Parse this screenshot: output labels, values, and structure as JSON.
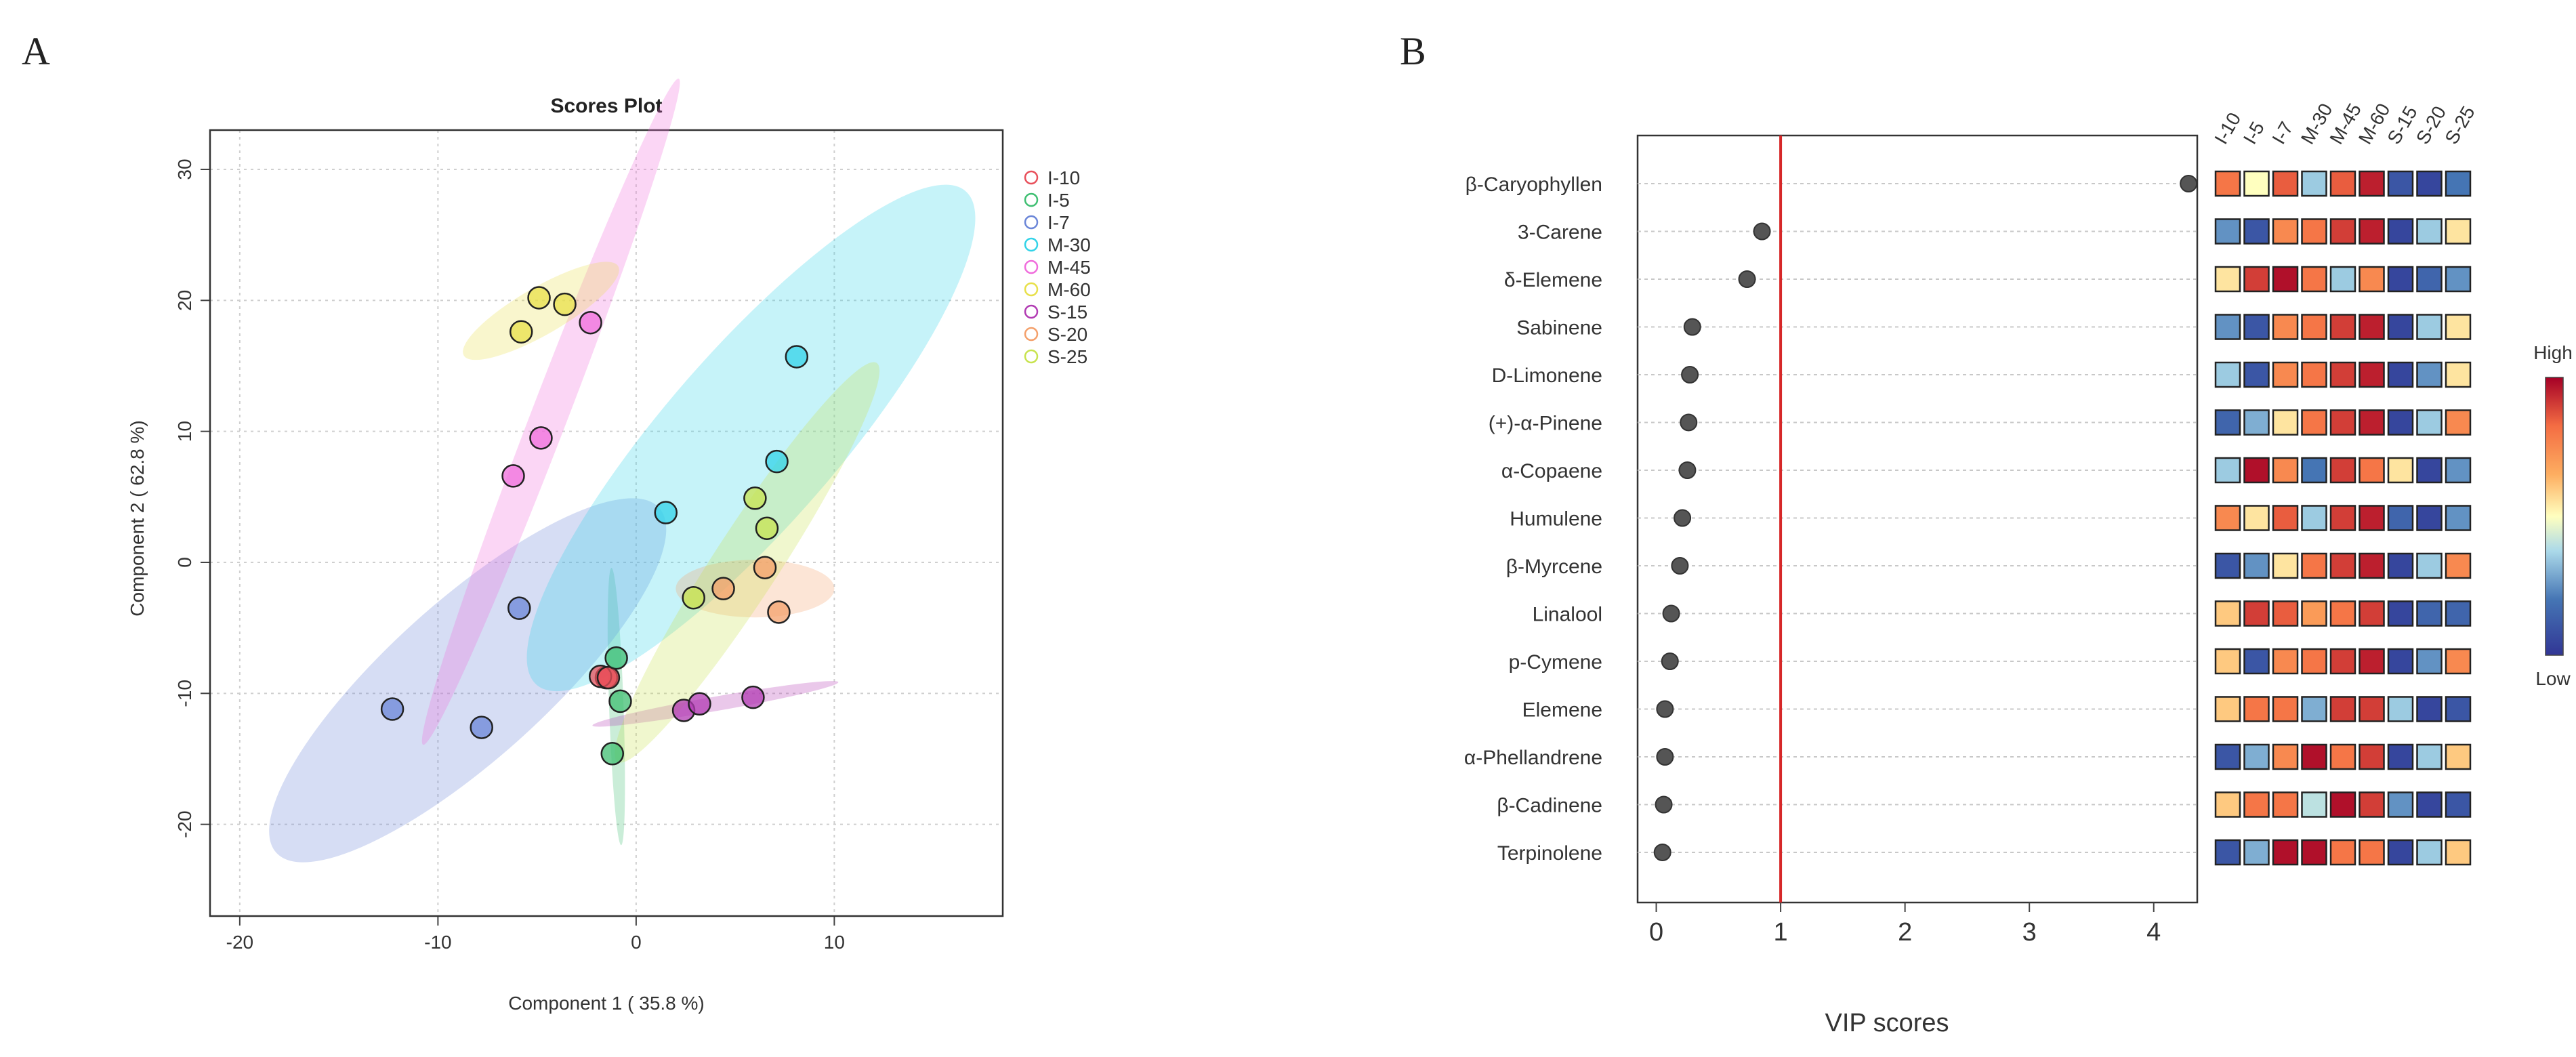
{
  "panel_labels": {
    "a": "A",
    "b": "B"
  },
  "chart_data": [
    {
      "type": "scatter",
      "title": "Scores Plot",
      "xlabel": "Component 1 ( 35.8 %)",
      "ylabel": "Component 2 ( 62.8 %)",
      "xlim": [
        -21.5,
        18.5
      ],
      "ylim": [
        -27,
        33
      ],
      "xticks": [
        "-20",
        "-10",
        "0",
        "10"
      ],
      "xtick_values": [
        -20,
        -10,
        0,
        10
      ],
      "yticks": [
        "-20",
        "-10",
        "0",
        "10",
        "20",
        "30"
      ],
      "ytick_values": [
        -20,
        -10,
        0,
        10,
        20,
        30
      ],
      "grid": true,
      "legend_position": "top-right",
      "series": [
        {
          "name": "I-10",
          "color": "#e8505b",
          "points": [
            [
              -1.5,
              -8.8
            ],
            [
              -1.8,
              -8.7
            ],
            [
              -1.4,
              -8.8
            ]
          ],
          "ellipse": null
        },
        {
          "name": "I-5",
          "color": "#3fbf72",
          "points": [
            [
              -1.0,
              -7.3
            ],
            [
              -0.8,
              -10.6
            ],
            [
              -1.2,
              -14.6
            ]
          ],
          "ellipse": {
            "cx": -1.0,
            "cy": -11.0,
            "rx": 7.0,
            "ry": 0.55,
            "angle": -88
          }
        },
        {
          "name": "I-7",
          "color": "#6b86d8",
          "points": [
            [
              -5.9,
              -3.5
            ],
            [
              -12.3,
              -11.2
            ],
            [
              -7.8,
              -12.6
            ]
          ],
          "ellipse": {
            "cx": -8.5,
            "cy": -9.0,
            "rx": 13.0,
            "ry": 6.0,
            "angle": 42
          }
        },
        {
          "name": "M-30",
          "color": "#33d3e8",
          "points": [
            [
              8.1,
              15.7
            ],
            [
              1.5,
              3.8
            ],
            [
              7.1,
              7.7
            ]
          ],
          "ellipse": {
            "cx": 5.8,
            "cy": 9.5,
            "rx": 16.5,
            "ry": 6.6,
            "angle": 49
          }
        },
        {
          "name": "M-45",
          "color": "#f06ddc",
          "points": [
            [
              -6.2,
              6.6
            ],
            [
              -4.8,
              9.5
            ],
            [
              -2.3,
              18.3
            ]
          ],
          "ellipse": {
            "cx": -4.3,
            "cy": 11.5,
            "rx": 18.0,
            "ry": 1.4,
            "angle": 69
          }
        },
        {
          "name": "M-60",
          "color": "#e8e04a",
          "points": [
            [
              -5.8,
              17.6
            ],
            [
              -4.9,
              20.2
            ],
            [
              -3.6,
              19.7
            ]
          ],
          "ellipse": {
            "cx": -4.8,
            "cy": 19.2,
            "rx": 4.5,
            "ry": 1.8,
            "angle": 30
          }
        },
        {
          "name": "S-15",
          "color": "#b23bb3",
          "points": [
            [
              2.4,
              -11.3
            ],
            [
              3.2,
              -10.8
            ],
            [
              5.9,
              -10.3
            ]
          ],
          "ellipse": {
            "cx": 4.0,
            "cy": -10.8,
            "rx": 6.3,
            "ry": 0.55,
            "angle": 10
          }
        },
        {
          "name": "S-20",
          "color": "#f4a06b",
          "points": [
            [
              4.4,
              -2.0
            ],
            [
              6.5,
              -0.4
            ],
            [
              7.2,
              -3.8
            ]
          ],
          "ellipse": {
            "cx": 6.0,
            "cy": -2.0,
            "rx": 4.0,
            "ry": 2.2,
            "angle": 0
          }
        },
        {
          "name": "S-25",
          "color": "#c8e34f",
          "points": [
            [
              6.0,
              4.9
            ],
            [
              6.6,
              2.6
            ],
            [
              2.9,
              -2.7
            ]
          ],
          "ellipse": {
            "cx": 5.6,
            "cy": 0.0,
            "rx": 12.0,
            "ry": 2.5,
            "angle": 57
          }
        }
      ]
    },
    {
      "type": "scatter",
      "subtype": "vip-dot-plot",
      "xlabel": "VIP scores",
      "xlim": [
        -0.15,
        4.35
      ],
      "xticks": [
        "0",
        "1",
        "2",
        "3",
        "4"
      ],
      "xtick_values": [
        0,
        1,
        2,
        3,
        4
      ],
      "threshold": 1,
      "threshold_color": "#d62728",
      "grid": true,
      "categories": [
        "β-Caryophyllen",
        "3-Carene",
        "δ-Elemene",
        "Sabinene",
        "D-Limonene",
        "(+)-α-Pinene",
        "α-Copaene",
        "Humulene",
        "β-Myrcene",
        "Linalool",
        "p-Cymene",
        "Elemene",
        "α-Phellandrene",
        "β-Cadinene",
        "Terpinolene"
      ],
      "values": [
        4.28,
        0.85,
        0.73,
        0.29,
        0.27,
        0.26,
        0.25,
        0.21,
        0.19,
        0.12,
        0.11,
        0.07,
        0.07,
        0.06,
        0.05
      ]
    },
    {
      "type": "heatmap",
      "columns": [
        "I-10",
        "I-5",
        "I-7",
        "M-30",
        "M-45",
        "M-60",
        "S-15",
        "S-20",
        "S-25"
      ],
      "rows": [
        "β-Caryophyllen",
        "3-Carene",
        "δ-Elemene",
        "Sabinene",
        "D-Limonene",
        "(+)-α-Pinene",
        "α-Copaene",
        "Humulene",
        "β-Myrcene",
        "Linalool",
        "p-Cymene",
        "Elemene",
        "α-Phellandrene",
        "β-Cadinene",
        "Terpinolene"
      ],
      "scale_min": -1,
      "scale_max": 1,
      "values": [
        [
          0.6,
          0.0,
          0.7,
          -0.3,
          0.7,
          0.9,
          -0.8,
          -0.9,
          -0.6
        ],
        [
          -0.5,
          -0.8,
          0.5,
          0.6,
          0.8,
          0.9,
          -0.9,
          -0.3,
          0.1
        ],
        [
          0.1,
          0.8,
          0.95,
          0.6,
          -0.3,
          0.5,
          -0.9,
          -0.7,
          -0.5
        ],
        [
          -0.5,
          -0.8,
          0.5,
          0.6,
          0.8,
          0.9,
          -0.9,
          -0.3,
          0.1
        ],
        [
          -0.3,
          -0.8,
          0.5,
          0.6,
          0.8,
          0.9,
          -0.9,
          -0.5,
          0.1
        ],
        [
          -0.7,
          -0.4,
          0.1,
          0.6,
          0.8,
          0.9,
          -0.9,
          -0.3,
          0.5
        ],
        [
          -0.3,
          0.95,
          0.5,
          -0.6,
          0.8,
          0.6,
          0.1,
          -0.9,
          -0.5
        ],
        [
          0.5,
          0.1,
          0.7,
          -0.3,
          0.8,
          0.9,
          -0.7,
          -0.9,
          -0.5
        ],
        [
          -0.8,
          -0.5,
          0.1,
          0.6,
          0.8,
          0.9,
          -0.9,
          -0.3,
          0.5
        ],
        [
          0.2,
          0.8,
          0.7,
          0.4,
          0.6,
          0.8,
          -0.9,
          -0.7,
          -0.7
        ],
        [
          0.2,
          -0.8,
          0.5,
          0.6,
          0.8,
          0.9,
          -0.9,
          -0.5,
          0.5
        ],
        [
          0.2,
          0.6,
          0.6,
          -0.4,
          0.8,
          0.8,
          -0.3,
          -0.9,
          -0.8
        ],
        [
          -0.8,
          -0.4,
          0.5,
          0.95,
          0.6,
          0.8,
          -0.9,
          -0.3,
          0.2
        ],
        [
          0.2,
          0.6,
          0.6,
          -0.2,
          0.95,
          0.8,
          -0.5,
          -0.9,
          -0.8
        ],
        [
          -0.8,
          -0.4,
          0.95,
          0.95,
          0.6,
          0.6,
          -0.9,
          -0.3,
          0.2
        ]
      ],
      "legend_high": "High",
      "legend_low": "Low"
    }
  ]
}
